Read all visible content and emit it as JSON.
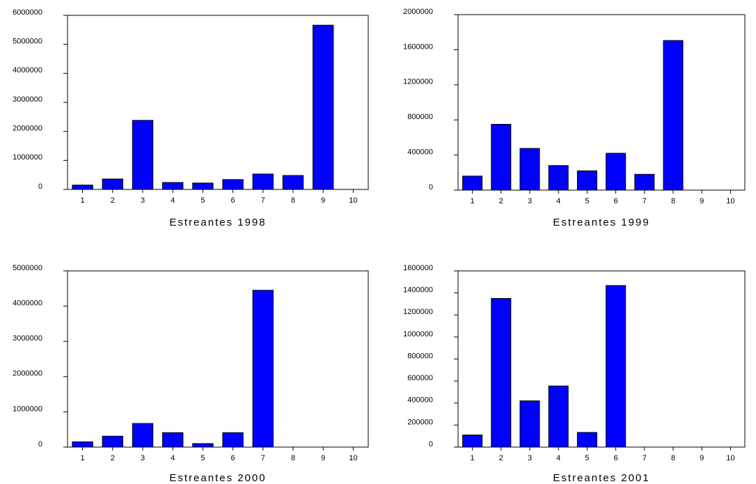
{
  "chart_data": [
    {
      "type": "bar",
      "title": "Estreantes 1998",
      "color": "#0000ff",
      "categories": [
        "1",
        "2",
        "3",
        "4",
        "5",
        "6",
        "7",
        "8",
        "9",
        "10"
      ],
      "values": [
        150000,
        360000,
        2380000,
        240000,
        220000,
        340000,
        530000,
        480000,
        5660000,
        null
      ],
      "ylim": [
        0,
        6000000
      ],
      "yticks": [
        0,
        1000000,
        2000000,
        3000000,
        4000000,
        5000000,
        6000000
      ]
    },
    {
      "type": "bar",
      "title": "Estreantes 1999",
      "color": "#0000ff",
      "categories": [
        "1",
        "2",
        "3",
        "4",
        "5",
        "6",
        "7",
        "8",
        "9",
        "10"
      ],
      "values": [
        160000,
        750000,
        475000,
        280000,
        220000,
        420000,
        180000,
        1705000,
        null,
        null
      ],
      "ylim": [
        0,
        2000000
      ],
      "yticks": [
        0,
        400000,
        800000,
        1200000,
        1600000,
        2000000
      ]
    },
    {
      "type": "bar",
      "title": "Estreantes 2000",
      "color": "#0000ff",
      "categories": [
        "1",
        "2",
        "3",
        "4",
        "5",
        "6",
        "7",
        "8",
        "9",
        "10"
      ],
      "values": [
        150000,
        310000,
        670000,
        410000,
        100000,
        410000,
        4450000,
        null,
        null,
        null
      ],
      "ylim": [
        0,
        5000000
      ],
      "yticks": [
        0,
        1000000,
        2000000,
        3000000,
        4000000,
        5000000
      ]
    },
    {
      "type": "bar",
      "title": "Estreantes 2001",
      "color": "#0000ff",
      "categories": [
        "1",
        "2",
        "3",
        "4",
        "5",
        "6",
        "7",
        "8",
        "9",
        "10"
      ],
      "values": [
        110000,
        1350000,
        420000,
        555000,
        133000,
        1467000,
        null,
        null,
        null,
        null
      ],
      "ylim": [
        0,
        1600000
      ],
      "yticks": [
        0,
        200000,
        400000,
        600000,
        800000,
        1000000,
        1200000,
        1400000,
        1600000
      ]
    }
  ]
}
